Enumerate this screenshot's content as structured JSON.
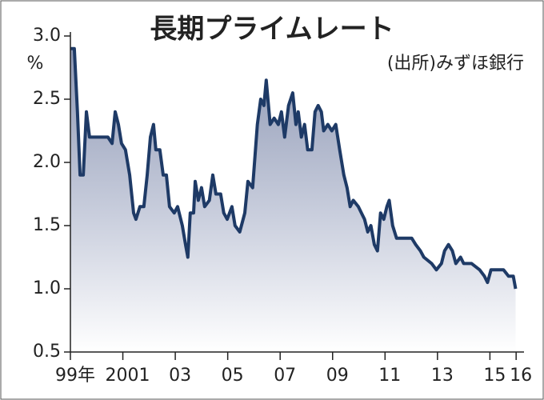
{
  "chart_data": {
    "type": "area",
    "title": "長期プライムレート",
    "y_unit": "%",
    "source": "(出所)みずほ銀行",
    "x": [
      1999.0,
      1999.15,
      1999.27,
      1999.37,
      1999.49,
      1999.61,
      1999.73,
      2000.13,
      2000.43,
      2000.59,
      2000.71,
      2000.83,
      2000.95,
      2001.1,
      2001.26,
      2001.41,
      2001.5,
      2001.65,
      2001.8,
      2001.93,
      2002.05,
      2002.17,
      2002.26,
      2002.41,
      2002.54,
      2002.66,
      2002.78,
      2002.96,
      2003.09,
      2003.27,
      2003.39,
      2003.48,
      2003.57,
      2003.7,
      2003.76,
      2003.88,
      2004.0,
      2004.12,
      2004.3,
      2004.43,
      2004.55,
      2004.73,
      2004.85,
      2004.98,
      2005.16,
      2005.28,
      2005.46,
      2005.65,
      2005.77,
      2005.95,
      2006.13,
      2006.26,
      2006.38,
      2006.47,
      2006.62,
      2006.77,
      2006.93,
      2007.05,
      2007.17,
      2007.32,
      2007.48,
      2007.6,
      2007.69,
      2007.81,
      2007.93,
      2008.05,
      2008.21,
      2008.33,
      2008.45,
      2008.57,
      2008.66,
      2008.82,
      2008.97,
      2009.12,
      2009.27,
      2009.43,
      2009.55,
      2009.67,
      2009.79,
      2009.98,
      2010.1,
      2010.22,
      2010.34,
      2010.46,
      2010.59,
      2010.71,
      2010.83,
      2010.95,
      2011.07,
      2011.16,
      2011.29,
      2011.44,
      2011.56,
      2012.02,
      2012.17,
      2012.35,
      2012.48,
      2012.78,
      2012.96,
      2013.15,
      2013.27,
      2013.42,
      2013.57,
      2013.7,
      2013.88,
      2014.0,
      2014.3,
      2014.61,
      2014.79,
      2014.91,
      2015.04,
      2015.52,
      2015.71,
      2015.89,
      2015.98
    ],
    "series": [
      {
        "name": "長期プライムレート",
        "color": "#1e3a66",
        "values": [
          2.9,
          2.9,
          2.4,
          1.9,
          1.9,
          2.4,
          2.2,
          2.2,
          2.2,
          2.15,
          2.4,
          2.3,
          2.15,
          2.1,
          1.9,
          1.6,
          1.55,
          1.65,
          1.65,
          1.9,
          2.2,
          2.3,
          2.1,
          2.1,
          1.9,
          1.9,
          1.65,
          1.6,
          1.65,
          1.5,
          1.35,
          1.25,
          1.6,
          1.6,
          1.85,
          1.7,
          1.8,
          1.65,
          1.7,
          1.9,
          1.75,
          1.75,
          1.6,
          1.55,
          1.65,
          1.5,
          1.45,
          1.6,
          1.85,
          1.8,
          2.3,
          2.5,
          2.45,
          2.65,
          2.3,
          2.35,
          2.3,
          2.4,
          2.2,
          2.45,
          2.55,
          2.3,
          2.4,
          2.2,
          2.3,
          2.1,
          2.1,
          2.4,
          2.45,
          2.4,
          2.25,
          2.3,
          2.25,
          2.3,
          2.1,
          1.9,
          1.8,
          1.65,
          1.7,
          1.65,
          1.6,
          1.55,
          1.45,
          1.5,
          1.35,
          1.3,
          1.6,
          1.55,
          1.65,
          1.7,
          1.5,
          1.4,
          1.4,
          1.4,
          1.35,
          1.3,
          1.25,
          1.2,
          1.15,
          1.2,
          1.3,
          1.35,
          1.3,
          1.2,
          1.25,
          1.2,
          1.2,
          1.15,
          1.1,
          1.05,
          1.15,
          1.15,
          1.1,
          1.1,
          1.0
        ]
      }
    ],
    "xlim": [
      1999,
      2016.3
    ],
    "xticks": [
      {
        "value": 1999,
        "label": "99年"
      },
      2001,
      {
        "value": 2003,
        "label": "03"
      },
      {
        "value": 2005,
        "label": "05"
      },
      {
        "value": 2007,
        "label": "07"
      },
      {
        "value": 2009,
        "label": "09"
      },
      {
        "value": 2011,
        "label": "11"
      },
      {
        "value": 2013,
        "label": "13"
      },
      {
        "value": 2015,
        "label": "15"
      },
      {
        "value": 2016,
        "label": "16"
      }
    ],
    "ylim": [
      0.5,
      3.0
    ],
    "yticks": [
      0.5,
      {
        "value": 1,
        "label": "1.0"
      },
      1.5,
      {
        "value": 2,
        "label": "2.0"
      },
      2.5,
      {
        "value": 3,
        "label": "3.0"
      }
    ]
  }
}
